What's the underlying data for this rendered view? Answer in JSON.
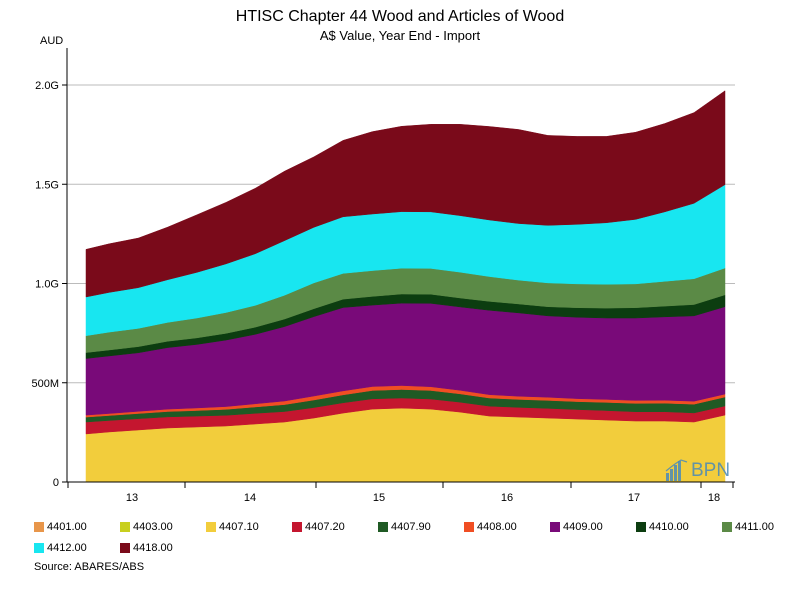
{
  "chart_data": {
    "type": "area",
    "stacked": true,
    "title": "HTISC Chapter 44 Wood and Articles of Wood",
    "subtitle": "A$ Value, Year End - Import",
    "ylabel": "AUD",
    "ylim": [
      0,
      2.1
    ],
    "y_ticks": [
      {
        "value": 0,
        "label": "0"
      },
      {
        "value": 0.5,
        "label": "500M"
      },
      {
        "value": 1.0,
        "label": "1.0G"
      },
      {
        "value": 1.5,
        "label": "1.5G"
      },
      {
        "value": 2.0,
        "label": "2.0G"
      }
    ],
    "x_ticks": [
      {
        "value": 13,
        "label": "13"
      },
      {
        "value": 14,
        "label": "14"
      },
      {
        "value": 15,
        "label": "15"
      },
      {
        "value": 16,
        "label": "16"
      },
      {
        "value": 17,
        "label": "17"
      },
      {
        "value": 18,
        "label": "18"
      }
    ],
    "x_range": [
      12.47,
      18.18
    ],
    "x": [
      12.58,
      12.83,
      13.08,
      13.33,
      13.58,
      13.83,
      14.08,
      14.33,
      14.58,
      14.83,
      15.08,
      15.33,
      15.58,
      15.83,
      16.08,
      16.33,
      16.58,
      16.83,
      17.08,
      17.33,
      17.58,
      17.83,
      18.08
    ],
    "grid": true,
    "legend_position": "bottom",
    "series": [
      {
        "name": "4401.00",
        "color": "#e8964a",
        "values": [
          0.001,
          0.001,
          0.001,
          0.001,
          0.001,
          0.001,
          0.001,
          0.001,
          0.001,
          0.001,
          0.001,
          0.001,
          0.001,
          0.001,
          0.001,
          0.001,
          0.001,
          0.001,
          0.001,
          0.001,
          0.001,
          0.001,
          0.001
        ]
      },
      {
        "name": "4403.00",
        "color": "#c8cf1e",
        "values": [
          0.001,
          0.001,
          0.001,
          0.001,
          0.001,
          0.001,
          0.001,
          0.001,
          0.001,
          0.001,
          0.001,
          0.001,
          0.001,
          0.001,
          0.001,
          0.001,
          0.001,
          0.001,
          0.001,
          0.001,
          0.001,
          0.001,
          0.001
        ]
      },
      {
        "name": "4407.10",
        "color": "#f2cd3c",
        "values": [
          0.24,
          0.25,
          0.26,
          0.27,
          0.275,
          0.28,
          0.29,
          0.3,
          0.32,
          0.345,
          0.365,
          0.37,
          0.365,
          0.35,
          0.33,
          0.325,
          0.32,
          0.315,
          0.31,
          0.305,
          0.305,
          0.3,
          0.335
        ]
      },
      {
        "name": "4407.20",
        "color": "#c4162f",
        "values": [
          0.06,
          0.058,
          0.057,
          0.056,
          0.055,
          0.054,
          0.054,
          0.053,
          0.053,
          0.052,
          0.052,
          0.051,
          0.051,
          0.05,
          0.05,
          0.049,
          0.049,
          0.048,
          0.048,
          0.047,
          0.047,
          0.046,
          0.046
        ]
      },
      {
        "name": "4407.90",
        "color": "#1f5a24",
        "values": [
          0.025,
          0.025,
          0.026,
          0.027,
          0.028,
          0.03,
          0.032,
          0.035,
          0.038,
          0.04,
          0.042,
          0.043,
          0.043,
          0.042,
          0.041,
          0.04,
          0.04,
          0.04,
          0.041,
          0.042,
          0.043,
          0.044,
          0.045
        ]
      },
      {
        "name": "4408.00",
        "color": "#f04e23",
        "values": [
          0.01,
          0.01,
          0.011,
          0.012,
          0.013,
          0.014,
          0.016,
          0.018,
          0.02,
          0.02,
          0.02,
          0.02,
          0.019,
          0.018,
          0.017,
          0.016,
          0.016,
          0.015,
          0.015,
          0.015,
          0.015,
          0.015,
          0.015
        ]
      },
      {
        "name": "4409.00",
        "color": "#790a79",
        "values": [
          0.285,
          0.29,
          0.295,
          0.31,
          0.32,
          0.335,
          0.35,
          0.375,
          0.4,
          0.42,
          0.41,
          0.415,
          0.42,
          0.42,
          0.425,
          0.42,
          0.41,
          0.41,
          0.41,
          0.415,
          0.42,
          0.43,
          0.44
        ]
      },
      {
        "name": "4410.00",
        "color": "#0c3d10",
        "values": [
          0.03,
          0.03,
          0.031,
          0.032,
          0.033,
          0.034,
          0.036,
          0.038,
          0.04,
          0.042,
          0.044,
          0.046,
          0.046,
          0.045,
          0.045,
          0.045,
          0.046,
          0.048,
          0.05,
          0.052,
          0.054,
          0.057,
          0.06
        ]
      },
      {
        "name": "4411.00",
        "color": "#5b8a46",
        "values": [
          0.085,
          0.09,
          0.092,
          0.095,
          0.1,
          0.105,
          0.11,
          0.12,
          0.13,
          0.13,
          0.13,
          0.13,
          0.13,
          0.13,
          0.125,
          0.12,
          0.12,
          0.12,
          0.12,
          0.12,
          0.125,
          0.13,
          0.135
        ]
      },
      {
        "name": "4412.00",
        "color": "#18e6f0",
        "values": [
          0.195,
          0.2,
          0.205,
          0.215,
          0.23,
          0.245,
          0.26,
          0.275,
          0.28,
          0.285,
          0.285,
          0.285,
          0.285,
          0.285,
          0.285,
          0.285,
          0.29,
          0.3,
          0.31,
          0.325,
          0.35,
          0.38,
          0.42
        ]
      },
      {
        "name": "4418.00",
        "color": "#7a0a1a",
        "values": [
          0.24,
          0.245,
          0.25,
          0.265,
          0.29,
          0.31,
          0.33,
          0.35,
          0.355,
          0.385,
          0.415,
          0.43,
          0.441,
          0.46,
          0.471,
          0.474,
          0.453,
          0.443,
          0.435,
          0.439,
          0.445,
          0.457,
          0.473
        ]
      }
    ],
    "source": "Source: ABARES/ABS",
    "watermark": "BPN"
  },
  "colors": {
    "grid": "#bbbbbb",
    "axis": "#000000",
    "watermark": "#4a8ab8"
  }
}
